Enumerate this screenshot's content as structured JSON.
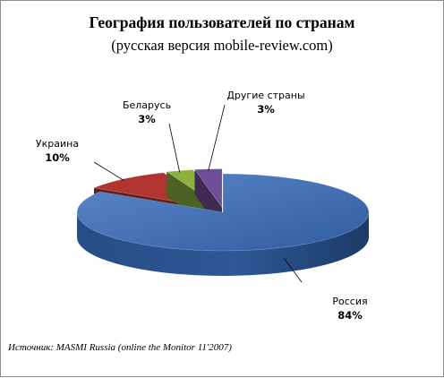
{
  "chart_data": {
    "type": "pie",
    "title": "География пользователей по странам",
    "subtitle": "(русская версия mobile-review.com)",
    "categories": [
      "Россия",
      "Украина",
      "Беларусь",
      "Другие страны"
    ],
    "values": [
      84,
      10,
      3,
      3
    ],
    "value_labels": [
      "84%",
      "10%",
      "3%",
      "3%"
    ],
    "colors": [
      "#3e6bb0",
      "#b23431",
      "#8cb03f",
      "#6f4e98"
    ],
    "style": "3d-exploded",
    "legend": "none"
  },
  "source": "Источник: MASMI Russia (online the Monitor 11'2007)"
}
